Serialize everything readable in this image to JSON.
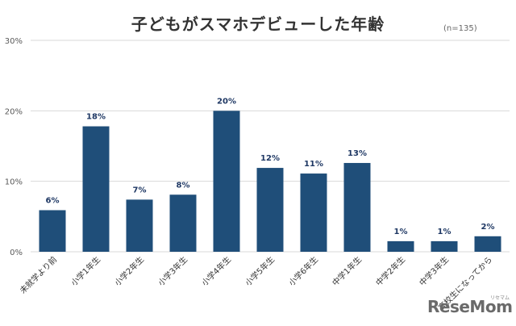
{
  "title": "子どもがスマホデビューした年齢",
  "sample_note": "(n=135)",
  "watermark": {
    "text": "ReseMom",
    "sub": "リセマム"
  },
  "colors": {
    "bar": "#1f4e79",
    "grid": "#d9d9d9",
    "axis_text": "#595959",
    "label_text": "#1f3864"
  },
  "chart_data": {
    "type": "bar",
    "title": "子どもがスマホデビューした年齢",
    "categories": [
      "未就学より前",
      "小学1年生",
      "小学2年生",
      "小学3年生",
      "小学4年生",
      "小学5年生",
      "小学6年生",
      "中学1年生",
      "中学2年生",
      "中学3年生",
      "高校生になってから"
    ],
    "values": [
      5.9,
      17.8,
      7.4,
      8.1,
      20.0,
      11.9,
      11.1,
      12.6,
      1.5,
      1.5,
      2.2
    ],
    "data_labels": [
      "6%",
      "18%",
      "7%",
      "8%",
      "20%",
      "12%",
      "11%",
      "13%",
      "1%",
      "1%",
      "2%"
    ],
    "ylim": [
      0,
      30
    ],
    "yticks": [
      "0%",
      "10%",
      "20%",
      "30%"
    ],
    "ytick_values": [
      0,
      10,
      20,
      30
    ],
    "grid": true,
    "xlabel": "",
    "ylabel": ""
  }
}
